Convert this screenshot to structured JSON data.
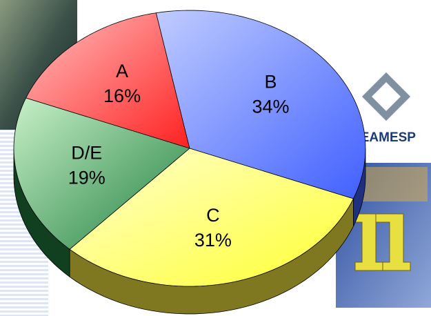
{
  "chart_data": {
    "type": "pie",
    "categories": [
      "A",
      "B",
      "C",
      "D/E"
    ],
    "values": [
      16,
      34,
      31,
      19
    ],
    "value_labels": [
      "16%",
      "34%",
      "31%",
      "19%"
    ],
    "colors": [
      "#ff2020",
      "#4060ff",
      "#ffff30",
      "#208040"
    ],
    "side_colors": [
      "#801010",
      "#203080",
      "#807820",
      "#104020"
    ],
    "light_colors": [
      "#ffc0c0",
      "#c0ccff",
      "#ffffd0",
      "#c8f0c8"
    ]
  },
  "logo_text": "AEAMESP"
}
